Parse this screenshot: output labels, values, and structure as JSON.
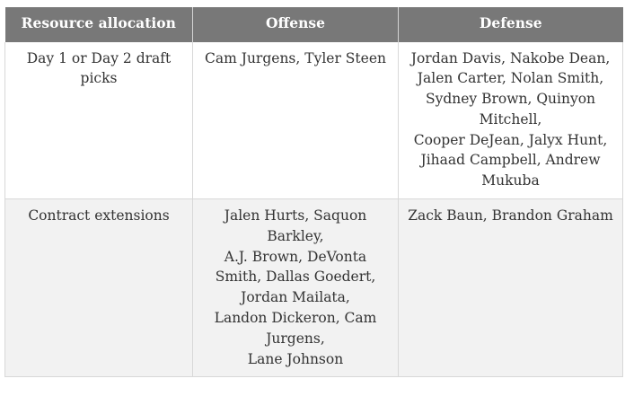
{
  "table": {
    "headers": [
      "Resource allocation",
      "Offense",
      "Defense"
    ],
    "rows": [
      {
        "category": "Day 1 or Day 2 draft picks",
        "offense": [
          "Cam Jurgens, Tyler Steen"
        ],
        "defense": [
          "Jordan Davis, Nakobe Dean, Jalen Carter, Nolan Smith, Sydney Brown, Quinyon Mitchell,",
          "Cooper DeJean, Jalyx Hunt, Jihaad Campbell, Andrew Mukuba"
        ]
      },
      {
        "category": "Contract extensions",
        "offense": [
          "Jalen Hurts, Saquon Barkley,",
          "A.J. Brown, DeVonta Smith, Dallas Goedert, Jordan Mailata,",
          "Landon Dickeron, Cam Jurgens,",
          "Lane Johnson"
        ],
        "defense": [
          "Zack Baun, Brandon Graham"
        ]
      }
    ]
  }
}
